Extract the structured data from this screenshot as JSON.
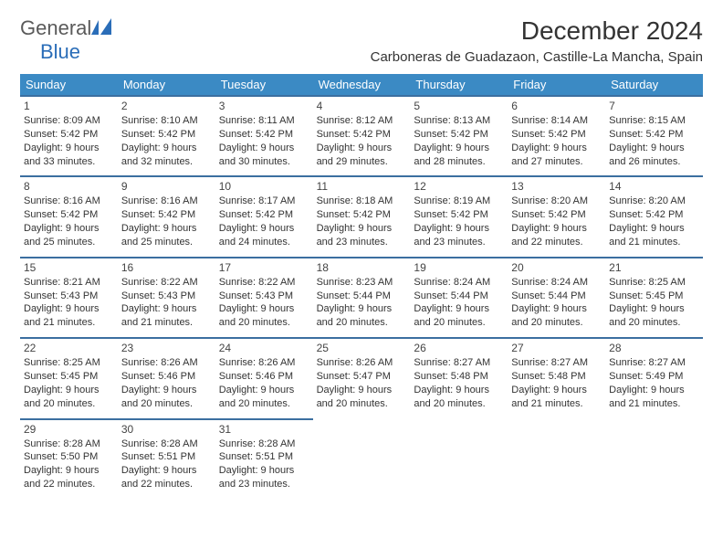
{
  "brand": {
    "part1": "General",
    "part2": "Blue"
  },
  "title": "December 2024",
  "location": "Carboneras de Guadazaon, Castille-La Mancha, Spain",
  "daysOfWeek": [
    "Sunday",
    "Monday",
    "Tuesday",
    "Wednesday",
    "Thursday",
    "Friday",
    "Saturday"
  ],
  "colors": {
    "headerBg": "#3b8ac4",
    "rowBorder": "#3b6fa0",
    "brandBlue": "#2a6db8",
    "brandGray": "#5a5a5a"
  },
  "cells": [
    {
      "day": "1",
      "sunrise": "8:09 AM",
      "sunset": "5:42 PM",
      "daylight": "9 hours and 33 minutes."
    },
    {
      "day": "2",
      "sunrise": "8:10 AM",
      "sunset": "5:42 PM",
      "daylight": "9 hours and 32 minutes."
    },
    {
      "day": "3",
      "sunrise": "8:11 AM",
      "sunset": "5:42 PM",
      "daylight": "9 hours and 30 minutes."
    },
    {
      "day": "4",
      "sunrise": "8:12 AM",
      "sunset": "5:42 PM",
      "daylight": "9 hours and 29 minutes."
    },
    {
      "day": "5",
      "sunrise": "8:13 AM",
      "sunset": "5:42 PM",
      "daylight": "9 hours and 28 minutes."
    },
    {
      "day": "6",
      "sunrise": "8:14 AM",
      "sunset": "5:42 PM",
      "daylight": "9 hours and 27 minutes."
    },
    {
      "day": "7",
      "sunrise": "8:15 AM",
      "sunset": "5:42 PM",
      "daylight": "9 hours and 26 minutes."
    },
    {
      "day": "8",
      "sunrise": "8:16 AM",
      "sunset": "5:42 PM",
      "daylight": "9 hours and 25 minutes."
    },
    {
      "day": "9",
      "sunrise": "8:16 AM",
      "sunset": "5:42 PM",
      "daylight": "9 hours and 25 minutes."
    },
    {
      "day": "10",
      "sunrise": "8:17 AM",
      "sunset": "5:42 PM",
      "daylight": "9 hours and 24 minutes."
    },
    {
      "day": "11",
      "sunrise": "8:18 AM",
      "sunset": "5:42 PM",
      "daylight": "9 hours and 23 minutes."
    },
    {
      "day": "12",
      "sunrise": "8:19 AM",
      "sunset": "5:42 PM",
      "daylight": "9 hours and 23 minutes."
    },
    {
      "day": "13",
      "sunrise": "8:20 AM",
      "sunset": "5:42 PM",
      "daylight": "9 hours and 22 minutes."
    },
    {
      "day": "14",
      "sunrise": "8:20 AM",
      "sunset": "5:42 PM",
      "daylight": "9 hours and 21 minutes."
    },
    {
      "day": "15",
      "sunrise": "8:21 AM",
      "sunset": "5:43 PM",
      "daylight": "9 hours and 21 minutes."
    },
    {
      "day": "16",
      "sunrise": "8:22 AM",
      "sunset": "5:43 PM",
      "daylight": "9 hours and 21 minutes."
    },
    {
      "day": "17",
      "sunrise": "8:22 AM",
      "sunset": "5:43 PM",
      "daylight": "9 hours and 20 minutes."
    },
    {
      "day": "18",
      "sunrise": "8:23 AM",
      "sunset": "5:44 PM",
      "daylight": "9 hours and 20 minutes."
    },
    {
      "day": "19",
      "sunrise": "8:24 AM",
      "sunset": "5:44 PM",
      "daylight": "9 hours and 20 minutes."
    },
    {
      "day": "20",
      "sunrise": "8:24 AM",
      "sunset": "5:44 PM",
      "daylight": "9 hours and 20 minutes."
    },
    {
      "day": "21",
      "sunrise": "8:25 AM",
      "sunset": "5:45 PM",
      "daylight": "9 hours and 20 minutes."
    },
    {
      "day": "22",
      "sunrise": "8:25 AM",
      "sunset": "5:45 PM",
      "daylight": "9 hours and 20 minutes."
    },
    {
      "day": "23",
      "sunrise": "8:26 AM",
      "sunset": "5:46 PM",
      "daylight": "9 hours and 20 minutes."
    },
    {
      "day": "24",
      "sunrise": "8:26 AM",
      "sunset": "5:46 PM",
      "daylight": "9 hours and 20 minutes."
    },
    {
      "day": "25",
      "sunrise": "8:26 AM",
      "sunset": "5:47 PM",
      "daylight": "9 hours and 20 minutes."
    },
    {
      "day": "26",
      "sunrise": "8:27 AM",
      "sunset": "5:48 PM",
      "daylight": "9 hours and 20 minutes."
    },
    {
      "day": "27",
      "sunrise": "8:27 AM",
      "sunset": "5:48 PM",
      "daylight": "9 hours and 21 minutes."
    },
    {
      "day": "28",
      "sunrise": "8:27 AM",
      "sunset": "5:49 PM",
      "daylight": "9 hours and 21 minutes."
    },
    {
      "day": "29",
      "sunrise": "8:28 AM",
      "sunset": "5:50 PM",
      "daylight": "9 hours and 22 minutes."
    },
    {
      "day": "30",
      "sunrise": "8:28 AM",
      "sunset": "5:51 PM",
      "daylight": "9 hours and 22 minutes."
    },
    {
      "day": "31",
      "sunrise": "8:28 AM",
      "sunset": "5:51 PM",
      "daylight": "9 hours and 23 minutes."
    }
  ],
  "labels": {
    "sunrise": "Sunrise: ",
    "sunset": "Sunset: ",
    "daylight": "Daylight: "
  }
}
